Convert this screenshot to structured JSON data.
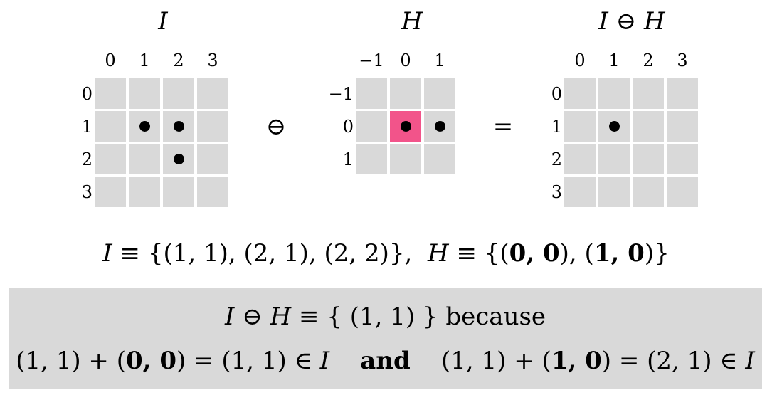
{
  "grids": [
    {
      "title": "I",
      "col_labels": [
        "0",
        "1",
        "2",
        "3"
      ],
      "row_labels": [
        "0",
        "1",
        "2",
        "3"
      ],
      "rows": 4,
      "cols": 4,
      "dots": [
        [
          1,
          1
        ],
        [
          1,
          2
        ],
        [
          2,
          2
        ]
      ],
      "highlight": []
    },
    {
      "title": "H",
      "col_labels": [
        "−1",
        "0",
        "1"
      ],
      "row_labels": [
        "−1",
        "0",
        "1"
      ],
      "rows": 3,
      "cols": 3,
      "dots": [
        [
          1,
          1
        ],
        [
          1,
          2
        ]
      ],
      "highlight": [
        [
          1,
          1
        ]
      ]
    },
    {
      "title": "I ⊖ H",
      "col_labels": [
        "0",
        "1",
        "2",
        "3"
      ],
      "row_labels": [
        "0",
        "1",
        "2",
        "3"
      ],
      "rows": 4,
      "cols": 4,
      "dots": [
        [
          1,
          1
        ]
      ],
      "highlight": []
    }
  ],
  "operators": {
    "erosion": "⊖",
    "equals": "="
  },
  "set_definition": {
    "I_name": "I",
    "equiv": "≡",
    "I_set": "{(1, 1), (2, 1), (2, 2)},",
    "H_name": "H",
    "H_open": "{(",
    "H_p1": "0, 0",
    "H_mid": "), (",
    "H_p2": "1, 0",
    "H_close": ")}"
  },
  "explanation": {
    "line1_lhs": "I ⊖ H",
    "line1_equiv": "≡",
    "line1_set": "{ (1, 1) }",
    "line1_word": "because",
    "part1_pre": "(1, 1) + (",
    "part1_bold": "0, 0",
    "part1_post": ") = (1, 1) ∈",
    "part1_set": "I",
    "connector": "and",
    "part2_pre": "(1, 1) + (",
    "part2_bold": "1, 0",
    "part2_post": ") = (2, 1) ∈",
    "part2_set": "I"
  },
  "colors": {
    "cell": "#d9d9d9",
    "highlight": "#f2548a",
    "panel": "#d9d9d9"
  }
}
